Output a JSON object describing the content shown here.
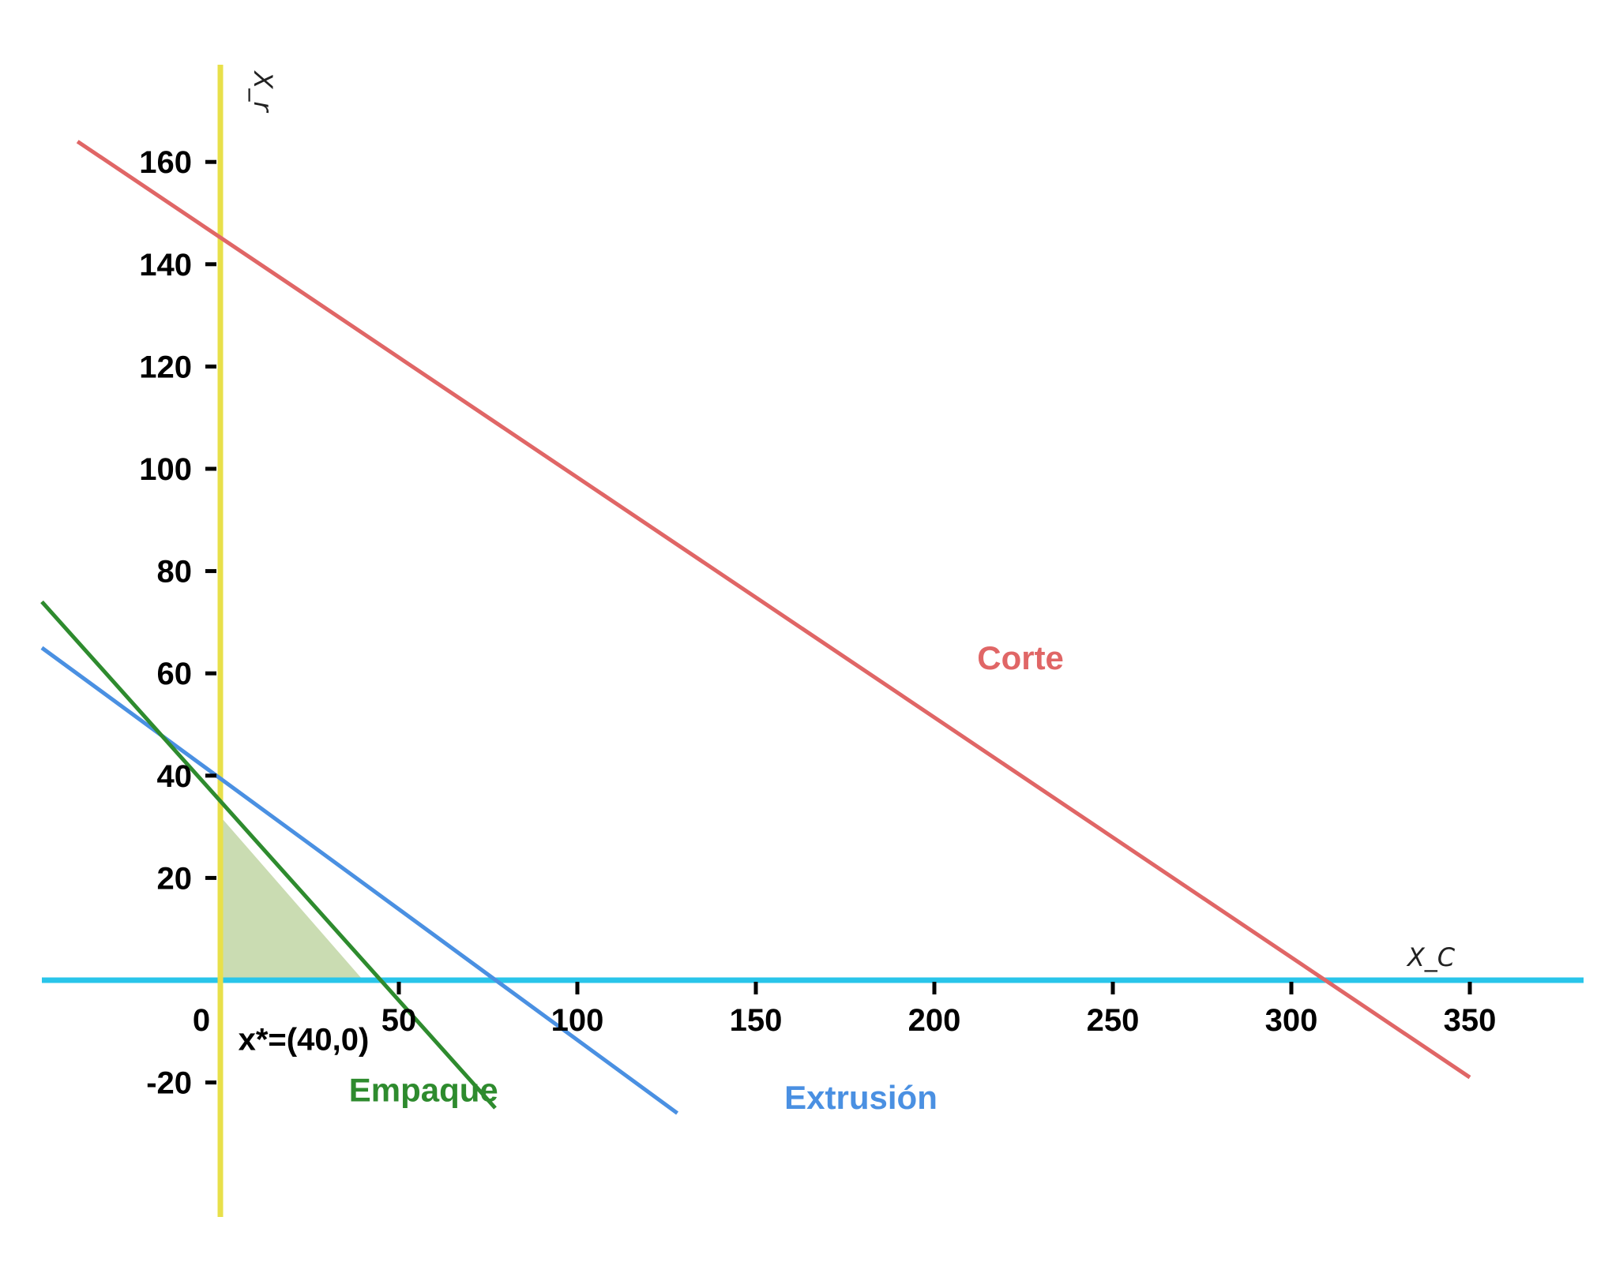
{
  "chart_data": {
    "type": "line",
    "xlabel": "X_C",
    "ylabel": "X_r",
    "xlim": [
      -50,
      380
    ],
    "ylim": [
      -45,
      175
    ],
    "x_ticks": [
      0,
      50,
      100,
      150,
      200,
      250,
      300,
      350
    ],
    "x_tick_labels": [
      "0",
      "50",
      "100",
      "150",
      "200",
      "250",
      "300",
      "350"
    ],
    "y_ticks": [
      -20,
      20,
      40,
      60,
      80,
      100,
      120,
      140,
      160
    ],
    "y_tick_labels": [
      "-20",
      "20",
      "40",
      "60",
      "80",
      "100",
      "120",
      "140",
      "160"
    ],
    "grid": false,
    "series": [
      {
        "name": "Corte",
        "color": "#e06666",
        "x": [
          -40,
          350
        ],
        "y": [
          164,
          -19
        ]
      },
      {
        "name": "Extrusión",
        "color": "#4a90e2",
        "x": [
          -50,
          128
        ],
        "y": [
          65,
          -26
        ]
      },
      {
        "name": "Empaque",
        "color": "#2e8b2e",
        "x": [
          -50,
          77
        ],
        "y": [
          74,
          -25
        ]
      }
    ],
    "axis_lines": {
      "x_axis": {
        "color": "#29c5ea",
        "y": 0
      },
      "y_axis": {
        "color": "#e8e04a",
        "x": 0
      }
    },
    "feasible_region": {
      "color": "#a6c47e",
      "polygon": [
        [
          0,
          0
        ],
        [
          0,
          32
        ],
        [
          40,
          0
        ]
      ]
    },
    "annotations": [
      {
        "text": "x*=(40,0)",
        "x": 5,
        "y": -11.5
      }
    ],
    "series_labels": [
      {
        "text": "Corte",
        "x": 212,
        "y": 63
      },
      {
        "text": "Extrusión",
        "x": 158,
        "y": -23
      },
      {
        "text": "Empaque",
        "x": 36,
        "y": -21.5
      }
    ]
  }
}
